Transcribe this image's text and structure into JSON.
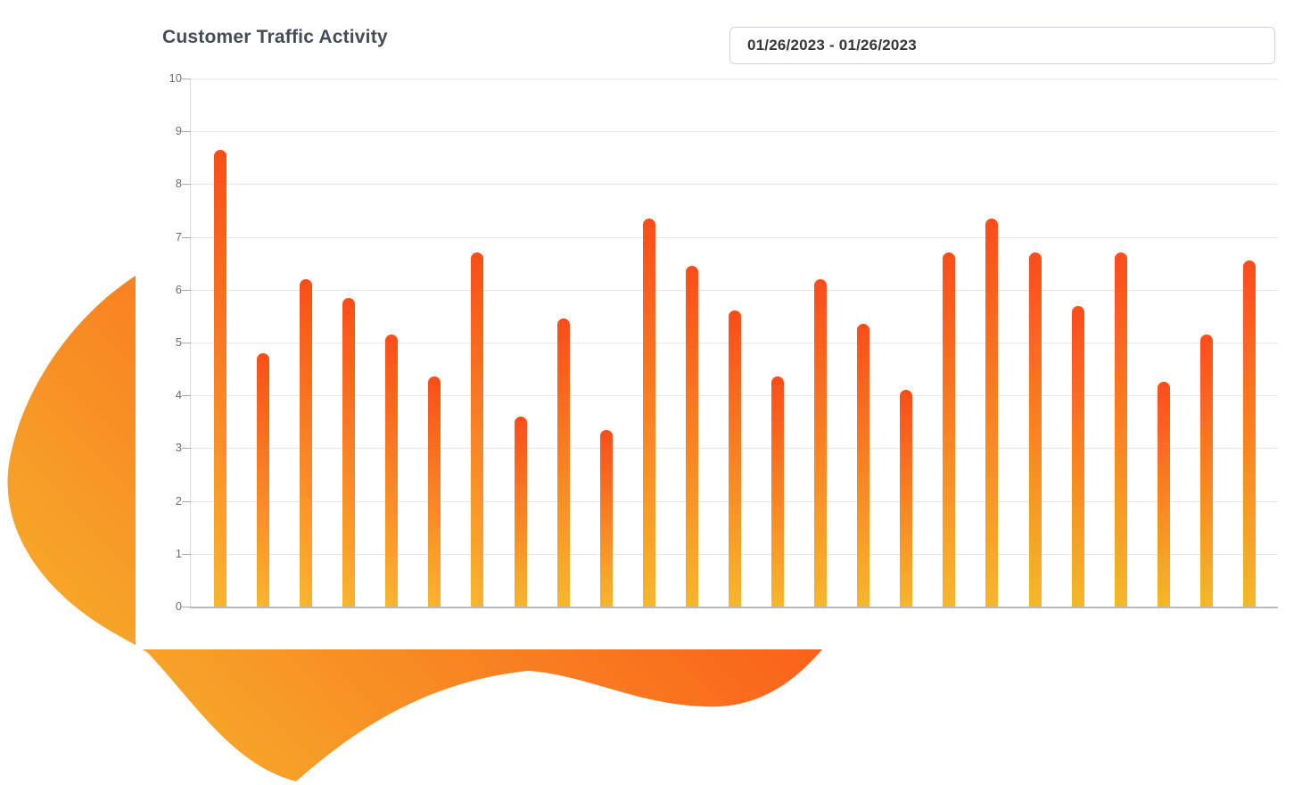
{
  "card": {
    "title": "Customer Traffic Activity"
  },
  "date_range": {
    "value": "01/26/2023 - 01/26/2023"
  },
  "colors": {
    "accent_top": "#fb4d1a",
    "accent_bottom": "#f8b62c",
    "blob_start": "#f6b42c",
    "blob_end": "#fb4a16",
    "title_text": "#454c58",
    "axis_label": "#6e6e6e"
  },
  "chart_data": {
    "type": "bar",
    "title": "Customer Traffic Activity",
    "xlabel": "",
    "ylabel": "",
    "ylim": [
      0,
      10
    ],
    "y_ticks": [
      0,
      1,
      2,
      3,
      4,
      5,
      6,
      7,
      8,
      9,
      10
    ],
    "grid": true,
    "legend": "none",
    "values": [
      8.65,
      4.8,
      6.2,
      5.85,
      5.15,
      4.35,
      6.7,
      3.6,
      5.45,
      3.35,
      7.35,
      6.45,
      5.6,
      4.35,
      6.2,
      5.35,
      4.1,
      6.7,
      7.35,
      6.7,
      5.7,
      6.7,
      4.25,
      5.15,
      6.55
    ],
    "bar_gradient": {
      "top": "#fb4d1a",
      "bottom": "#f8b62c"
    }
  }
}
